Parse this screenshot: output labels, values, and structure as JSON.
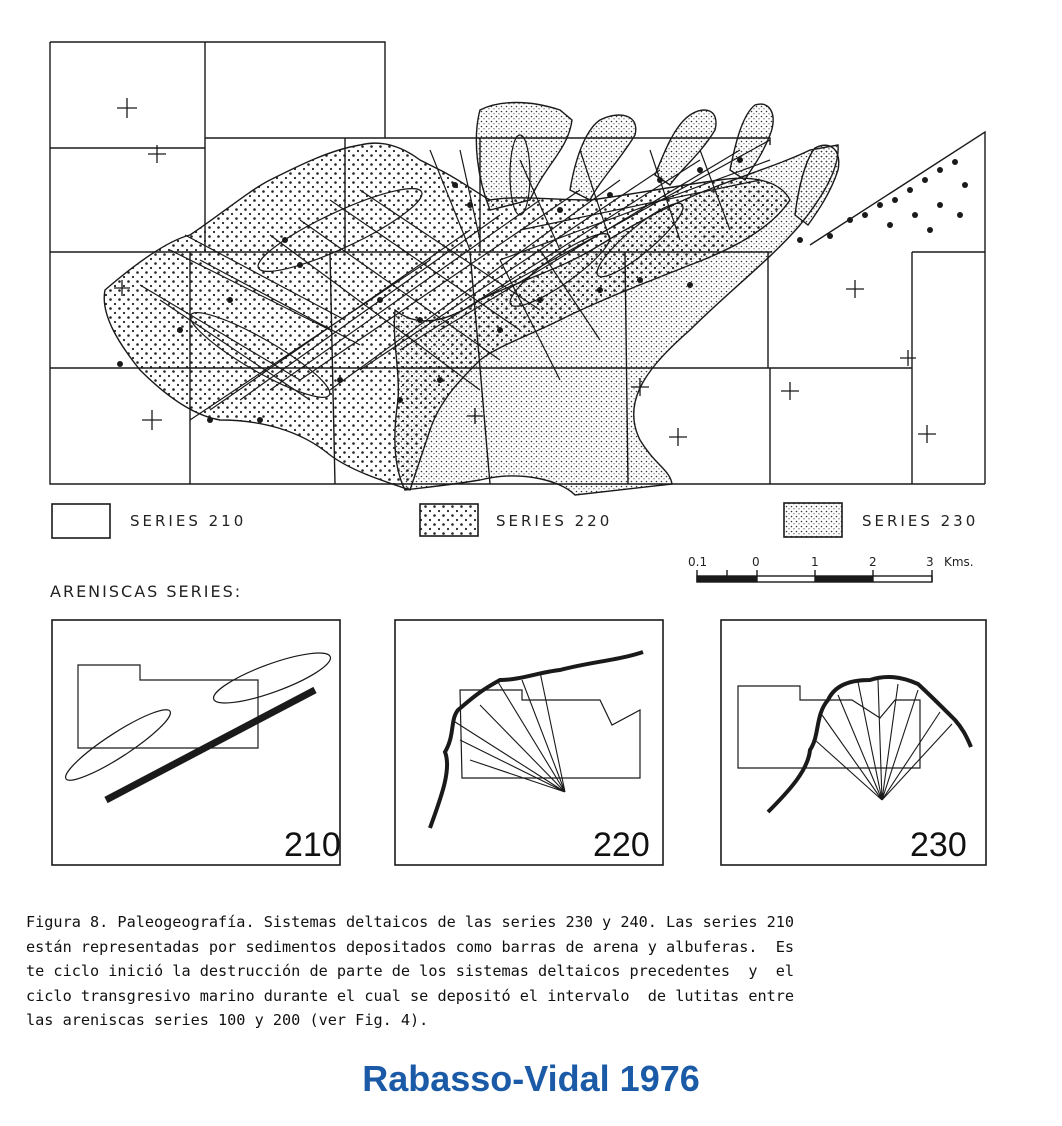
{
  "legend": [
    {
      "label": "SERIES  210",
      "pattern": "none"
    },
    {
      "label": "SERIES  220",
      "pattern": "dots-coarse"
    },
    {
      "label": "SERIES   230",
      "pattern": "dots-fine"
    }
  ],
  "scale": {
    "ticks": [
      "0.1",
      "0",
      "1",
      "2",
      "3"
    ],
    "unit": "Kms."
  },
  "section_title": "ARENISCAS  SERIES:",
  "panels": [
    {
      "number": "210"
    },
    {
      "number": "220"
    },
    {
      "number": "230"
    }
  ],
  "caption": {
    "lines": [
      "Figura 8. Paleogeografía. Sistemas deltaicos de las series 230 y 240. Las series 210",
      "están representadas por sedimentos depositados como barras de arena y albuferas.  Es",
      "te ciclo inició la destrucción de parte de los sistemas deltaicos precedentes  y  el",
      "ciclo transgresivo marino durante el cual se depositó el intervalo  de lutitas entre",
      "las areniscas series 100 y 200 (ver Fig. 4)."
    ]
  },
  "credit": "Rabasso-Vidal 1976",
  "colors": {
    "ink": "#1a1a1a",
    "credit": "#1a5aa6",
    "background": "#ffffff"
  }
}
